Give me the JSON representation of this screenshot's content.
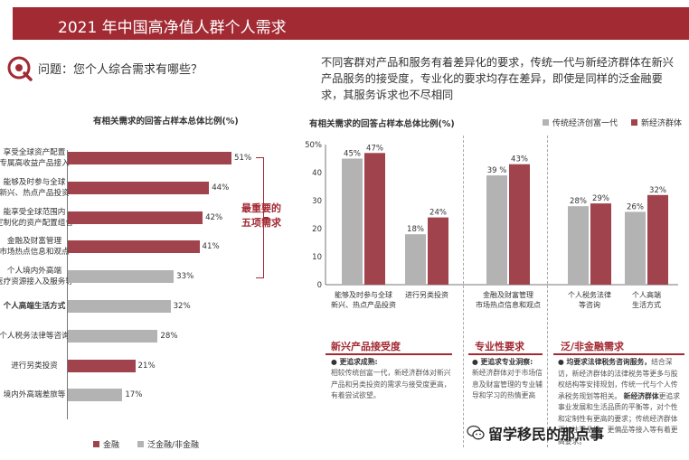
{
  "header": {
    "title": "2021 年中国高净值人群个人需求"
  },
  "question": "问题：您个人综合需求有哪些？",
  "intro": "不同客群对产品和服务有着差异化的要求，传统一代与新经济群体在新兴产品服务的接受度，专业化的要求均存在差异，即使是同样的泛金融要求，其服务诉求也不尽相同",
  "colors": {
    "finance": "#a0434d",
    "non_finance": "#b3b3b3",
    "new_econ": "#a0434d",
    "traditional": "#b3b3b3",
    "accent": "#a22a33"
  },
  "top5_label": [
    "最重要的",
    "五项需求"
  ],
  "chart_data": [
    {
      "type": "bar",
      "orientation": "horizontal",
      "title": "有相关需求的回答占样本总体比例(%)",
      "categories": [
        [
          "享受全球资产配置",
          "专属高收益产品接入"
        ],
        [
          "能够及时参与全球",
          "新兴、热点产品投资"
        ],
        [
          "能享受全球范围内",
          "定制化的资产配置组合"
        ],
        [
          "金融及财富管理",
          "市场热点信息和观点"
        ],
        [
          "个人境内外高端",
          "医疗资源接入及服务等"
        ],
        [
          "个人高端生活方式"
        ],
        [
          "个人税务法律等咨询"
        ],
        [
          "进行另类投资"
        ],
        [
          "境内外高端差旅等"
        ]
      ],
      "values": [
        51,
        44,
        42,
        41,
        33,
        32,
        28,
        21,
        17
      ],
      "value_labels": [
        "51%",
        "44%",
        "42%",
        "41%",
        "33%",
        "32%",
        "28%",
        "21%",
        "17%"
      ],
      "group": [
        "finance",
        "finance",
        "finance",
        "finance",
        "non_finance",
        "non_finance",
        "non_finance",
        "finance",
        "non_finance"
      ],
      "legend": [
        {
          "name": "金融",
          "color": "#a0434d"
        },
        {
          "name": "泛金融/非金融",
          "color": "#b3b3b3"
        }
      ],
      "legend_position": "bottom",
      "xlim": [
        0,
        60
      ]
    },
    {
      "type": "bar",
      "title": "有相关需求的回答占样本总体比例(%)",
      "categories": [
        [
          "能够及时参与全球",
          "新兴、热点产品投资"
        ],
        [
          "进行另类投资"
        ],
        [
          "金融及财富管理",
          "市场热点信息和观点"
        ],
        [
          "个人税务法律",
          "等咨询"
        ],
        [
          "个人高端",
          "生活方式"
        ]
      ],
      "series": [
        {
          "name": "传统经济创富一代",
          "color": "#b3b3b3",
          "values": [
            45,
            18,
            39,
            28,
            26
          ],
          "labels": [
            "45%",
            "18%",
            "39 %",
            "28%",
            "26%"
          ]
        },
        {
          "name": "新经济群体",
          "color": "#a0434d",
          "values": [
            47,
            24,
            43,
            29,
            32
          ],
          "labels": [
            "47%",
            "24%",
            "43%",
            "29%",
            "32%"
          ]
        }
      ],
      "ylim": [
        0,
        50
      ],
      "yticks": [
        "50%",
        "40",
        "30",
        "20",
        "10",
        "0"
      ],
      "legend_position": "top-right"
    }
  ],
  "panels": [
    {
      "title": "新兴产品接受度",
      "heading": "● 更追求成熟:",
      "body": "相较传统创富一代，新经济群体对新兴产品和另类投资的需求与接受度更高，有着尝试欲望。"
    },
    {
      "title": "专业性要求",
      "heading": "● 更追求专业洞察:",
      "body": "新经济群体对于市场信息及财富管理的专业辅导和学习的热情更高"
    },
    {
      "title": "泛/非金融需求",
      "heading": "● 均要求法律税务咨询服务，",
      "body": "结合深访，新经济群体的法律税务等更多与股权结构等安排规划，传统一代与个人传承税务规划等相关。",
      "heading2": "新经济群体",
      "body2": "更追求事业发展和生活品质的平衡等，对个性和定制性有更高的要求；传统经济群体更加注重品级，更偏品等接入等有着更高要求。"
    }
  ],
  "watermark": "留学移民的那点事"
}
